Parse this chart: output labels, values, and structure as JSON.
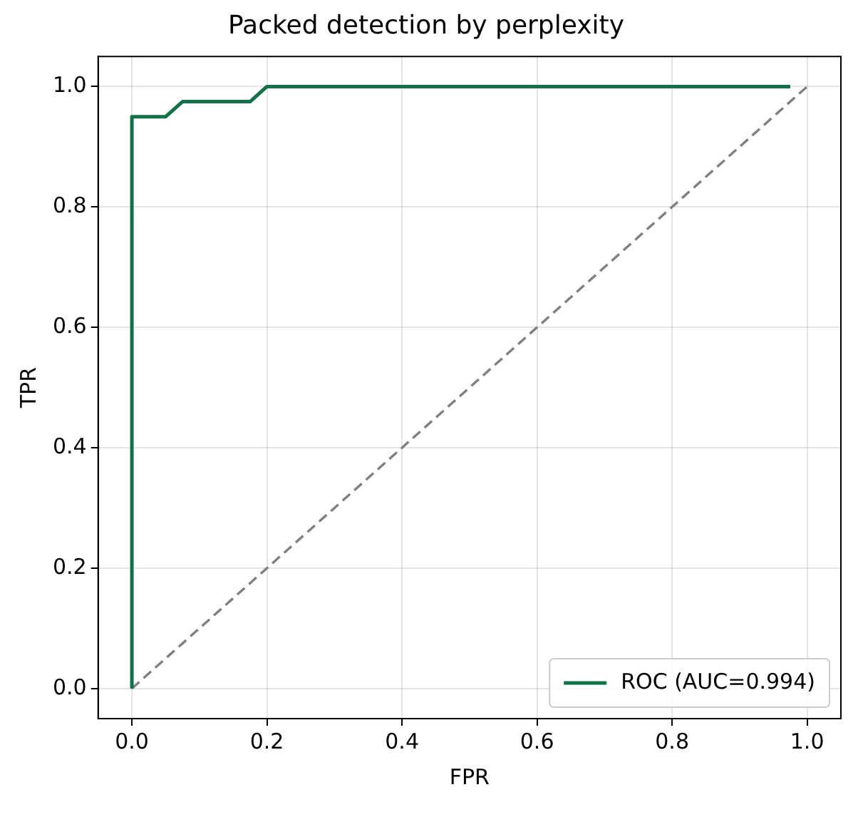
{
  "chart_data": {
    "type": "line",
    "title": "Packed detection by perplexity",
    "xlabel": "FPR",
    "ylabel": "TPR",
    "xlim": [
      -0.05,
      1.05
    ],
    "ylim": [
      -0.05,
      1.05
    ],
    "xticks": [
      {
        "value": 0,
        "label": "0.0"
      },
      {
        "value": 0.2,
        "label": "0.2"
      },
      {
        "value": 0.4,
        "label": "0.4"
      },
      {
        "value": 0.6,
        "label": "0.6"
      },
      {
        "value": 0.8,
        "label": "0.8"
      },
      {
        "value": 1,
        "label": "1.0"
      }
    ],
    "yticks": [
      {
        "value": 0,
        "label": "0.0"
      },
      {
        "value": 0.2,
        "label": "0.2"
      },
      {
        "value": 0.4,
        "label": "0.4"
      },
      {
        "value": 0.6,
        "label": "0.6"
      },
      {
        "value": 0.8,
        "label": "0.8"
      },
      {
        "value": 1,
        "label": "1.0"
      }
    ],
    "series": [
      {
        "name": "ROC (AUC=0.994)",
        "color": "#137148",
        "x": [
          0,
          0,
          0.05,
          0.075,
          0.175,
          0.2,
          0.975
        ],
        "values": [
          0,
          0.95,
          0.95,
          0.975,
          0.975,
          1,
          1
        ]
      },
      {
        "color": "#808080",
        "line_style": "dashed",
        "x": [
          0,
          1
        ],
        "values": [
          0,
          1
        ]
      }
    ],
    "grid": true,
    "legend": "bottom right",
    "marker": "none"
  }
}
